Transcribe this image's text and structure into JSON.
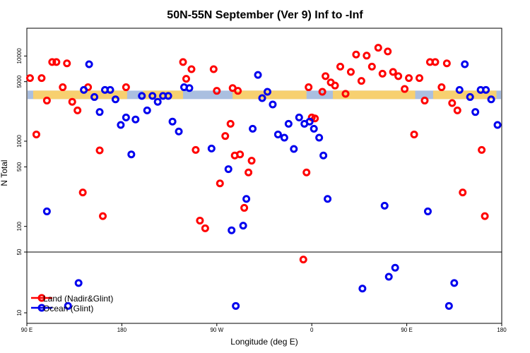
{
  "chart_data": {
    "type": "scatter",
    "title": "50N-55N September (Ver 9)   Inf to -Inf",
    "xlabel": "Longitude (deg E)",
    "ylabel": "N Total",
    "x_ticks": [
      {
        "value": 0,
        "label": "90 E"
      },
      {
        "value": 90,
        "label": "180"
      },
      {
        "value": 180,
        "label": "90 W"
      },
      {
        "value": 270,
        "label": "0"
      },
      {
        "value": 360,
        "label": "90 E"
      },
      {
        "value": 450,
        "label": "180"
      }
    ],
    "xlim": [
      0,
      450
    ],
    "upper_panel": {
      "scale": "log",
      "ylim": [
        50,
        20000
      ],
      "y_ticks": [
        {
          "value": 100,
          "label": "100"
        },
        {
          "value": 500,
          "label": "500"
        },
        {
          "value": 1000,
          "label": "1000"
        },
        {
          "value": 5000,
          "label": "5000"
        },
        {
          "value": 10000,
          "label": "10000"
        }
      ]
    },
    "lower_panel": {
      "scale": "log",
      "ylim": [
        8,
        50
      ],
      "y_ticks": [
        {
          "value": 10,
          "label": "10"
        },
        {
          "value": 50,
          "label": "50"
        }
      ]
    },
    "band": {
      "y_center": 3500,
      "colors": [
        "#aabfe0",
        "#f7d070"
      ]
    },
    "series": [
      {
        "name": "Land (Nadir&Glint)",
        "color": "#ff0000",
        "points": [
          [
            3,
            5500
          ],
          [
            9,
            1200
          ],
          [
            14,
            5500
          ],
          [
            19,
            3000
          ],
          [
            24,
            8500
          ],
          [
            28,
            8500
          ],
          [
            34,
            4300
          ],
          [
            38,
            8200
          ],
          [
            43,
            2900
          ],
          [
            48,
            2300
          ],
          [
            53,
            250
          ],
          [
            58,
            4300
          ],
          [
            69,
            780
          ],
          [
            72,
            132
          ],
          [
            94,
            4300
          ],
          [
            148,
            8500
          ],
          [
            151,
            5400
          ],
          [
            156,
            7000
          ],
          [
            160,
            790
          ],
          [
            164,
            117
          ],
          [
            169,
            95
          ],
          [
            177,
            7000
          ],
          [
            180,
            3900
          ],
          [
            183,
            320
          ],
          [
            188,
            1150
          ],
          [
            193,
            1600
          ],
          [
            195,
            4200
          ],
          [
            197,
            680
          ],
          [
            200,
            3900
          ],
          [
            202,
            700
          ],
          [
            206,
            165
          ],
          [
            210,
            430
          ],
          [
            213,
            590
          ],
          [
            262,
            41
          ],
          [
            265,
            430
          ],
          [
            267,
            4300
          ],
          [
            270,
            1900
          ],
          [
            273,
            1850
          ],
          [
            280,
            3800
          ],
          [
            283,
            5800
          ],
          [
            288,
            4900
          ],
          [
            292,
            4500
          ],
          [
            297,
            7500
          ],
          [
            302,
            3600
          ],
          [
            307,
            6500
          ],
          [
            312,
            10400
          ],
          [
            317,
            5100
          ],
          [
            322,
            10100
          ],
          [
            327,
            7500
          ],
          [
            333,
            12500
          ],
          [
            337,
            6200
          ],
          [
            342,
            11300
          ],
          [
            347,
            6500
          ],
          [
            352,
            5800
          ],
          [
            358,
            4100
          ],
          [
            362,
            5500
          ],
          [
            367,
            1200
          ],
          [
            372,
            5500
          ],
          [
            377,
            3000
          ],
          [
            382,
            8500
          ],
          [
            387,
            8500
          ],
          [
            393,
            4300
          ],
          [
            398,
            8200
          ],
          [
            403,
            2800
          ],
          [
            408,
            2300
          ],
          [
            413,
            250
          ],
          [
            431,
            790
          ],
          [
            434,
            132
          ]
        ]
      },
      {
        "name": "Ocean (Glint)",
        "color": "#0000ee",
        "points": [
          [
            19,
            150
          ],
          [
            39,
            12
          ],
          [
            49,
            22
          ],
          [
            54,
            4000
          ],
          [
            59,
            8000
          ],
          [
            64,
            3300
          ],
          [
            69,
            2200
          ],
          [
            74,
            4000
          ],
          [
            79,
            4000
          ],
          [
            84,
            3100
          ],
          [
            89,
            1550
          ],
          [
            94,
            1900
          ],
          [
            99,
            700
          ],
          [
            103,
            1800
          ],
          [
            109,
            3400
          ],
          [
            114,
            2300
          ],
          [
            119,
            3400
          ],
          [
            124,
            2900
          ],
          [
            129,
            3400
          ],
          [
            134,
            3400
          ],
          [
            138,
            1700
          ],
          [
            144,
            1300
          ],
          [
            149,
            4300
          ],
          [
            154,
            4200
          ],
          [
            175,
            820
          ],
          [
            191,
            470
          ],
          [
            194,
            90
          ],
          [
            198,
            12
          ],
          [
            205,
            102
          ],
          [
            208,
            210
          ],
          [
            214,
            1400
          ],
          [
            219,
            6000
          ],
          [
            223,
            3200
          ],
          [
            228,
            3800
          ],
          [
            233,
            2700
          ],
          [
            238,
            1200
          ],
          [
            244,
            1100
          ],
          [
            248,
            1600
          ],
          [
            253,
            810
          ],
          [
            258,
            1900
          ],
          [
            263,
            1600
          ],
          [
            268,
            1700
          ],
          [
            272,
            1400
          ],
          [
            277,
            1100
          ],
          [
            281,
            680
          ],
          [
            285,
            210
          ],
          [
            318,
            19
          ],
          [
            339,
            175
          ],
          [
            343,
            26
          ],
          [
            349,
            33
          ],
          [
            380,
            150
          ],
          [
            400,
            12
          ],
          [
            405,
            22
          ],
          [
            410,
            4000
          ],
          [
            415,
            8000
          ],
          [
            420,
            3300
          ],
          [
            425,
            2200
          ],
          [
            430,
            4000
          ],
          [
            435,
            4000
          ],
          [
            440,
            3100
          ],
          [
            446,
            1550
          ]
        ]
      }
    ],
    "legend": {
      "position": "bottom-left",
      "entries": [
        "Land (Nadir&Glint)",
        "Ocean (Glint)"
      ]
    }
  }
}
